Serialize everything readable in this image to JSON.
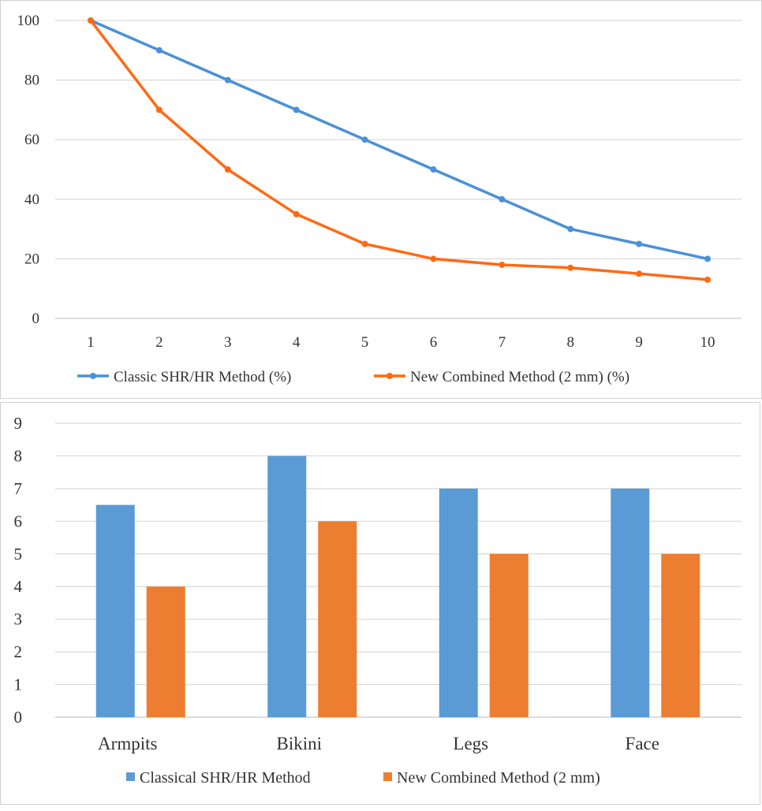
{
  "chart_data": [
    {
      "type": "line",
      "title": "",
      "xlabel": "",
      "ylabel": "",
      "x": [
        1,
        2,
        3,
        4,
        5,
        6,
        7,
        8,
        9,
        10
      ],
      "ylim": [
        0,
        100
      ],
      "yticks": [
        0,
        20,
        40,
        60,
        80,
        100
      ],
      "grid": true,
      "legend_position": "bottom",
      "series": [
        {
          "name": "Classic SHR/HR Method (%)",
          "color": "#4a90d9",
          "values": [
            100,
            90,
            80,
            70,
            60,
            50,
            40,
            30,
            25,
            20
          ]
        },
        {
          "name": "New Combined Method (2 mm) (%)",
          "color": "#ff6a13",
          "values": [
            100,
            70,
            50,
            35,
            25,
            20,
            18,
            17,
            15,
            13
          ]
        }
      ]
    },
    {
      "type": "bar",
      "title": "",
      "xlabel": "",
      "ylabel": "",
      "categories": [
        "Armpits",
        "Bikini",
        "Legs",
        "Face"
      ],
      "ylim": [
        0,
        9
      ],
      "yticks": [
        0,
        1,
        2,
        3,
        4,
        5,
        6,
        7,
        8,
        9
      ],
      "grid": true,
      "legend_position": "bottom",
      "series": [
        {
          "name": "Classical SHR/HR Method",
          "color": "#5b9bd5",
          "values": [
            6.5,
            8,
            7,
            7
          ]
        },
        {
          "name": "New Combined Method (2 mm)",
          "color": "#ed7d31",
          "values": [
            4,
            6,
            5,
            5
          ]
        }
      ]
    }
  ]
}
